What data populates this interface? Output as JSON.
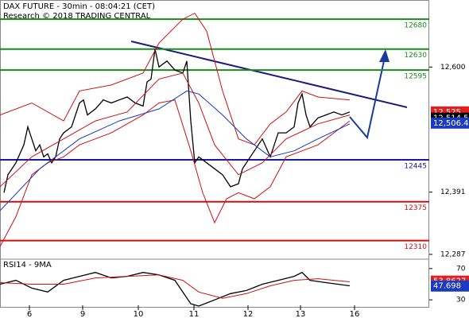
{
  "chart_data": {
    "type": "line",
    "title": "DAX FUTURE - 30min - 08:04:21 (CET)",
    "subtitle": "Research © 2018 TRADING CENTRAL",
    "xlim": [
      0,
      540
    ],
    "xticks": [
      {
        "value": 37,
        "label": "6"
      },
      {
        "value": 104,
        "label": "9"
      },
      {
        "value": 174,
        "label": "10"
      },
      {
        "value": 244,
        "label": "11"
      },
      {
        "value": 312,
        "label": "12"
      },
      {
        "value": 378,
        "label": "13"
      },
      {
        "value": 446,
        "label": "16"
      }
    ],
    "ylim": [
      12279,
      12712
    ],
    "yticks": [
      {
        "value": 12600,
        "label": "12,600"
      },
      {
        "value": 12391,
        "label": "12,391"
      },
      {
        "value": 12287,
        "label": "12,287"
      }
    ],
    "levels": [
      {
        "value": 12680,
        "color": "#1a8a1a"
      },
      {
        "value": 12630,
        "color": "#1a8a1a"
      },
      {
        "value": 12595,
        "color": "#1a8a1a"
      },
      {
        "value": 12445,
        "color": "#1a1aa0"
      },
      {
        "value": 12375,
        "color": "#d01010"
      },
      {
        "value": 12310,
        "color": "#d01010"
      }
    ],
    "last_labels": [
      {
        "value": 12525,
        "label": "12,525",
        "color": "#e02020"
      },
      {
        "value": 12514.5,
        "label": "12,514.5",
        "color": "#000000"
      },
      {
        "value": 12506.4,
        "label": "12,506.4",
        "color": "#1a3ac0"
      }
    ],
    "series": [
      {
        "color": "#000000",
        "x": [
          5,
          10,
          20,
          30,
          35,
          40,
          45,
          50,
          55,
          60,
          65,
          70,
          75,
          80,
          90,
          100,
          105,
          110,
          120,
          130,
          140,
          150,
          160,
          170,
          180,
          185,
          190,
          195,
          200,
          210,
          220,
          230,
          235,
          240,
          245,
          250,
          260,
          270,
          280,
          290,
          300,
          305,
          310,
          320,
          330,
          340,
          345,
          350,
          360,
          370,
          375,
          380,
          385,
          390,
          400,
          410,
          420,
          430,
          440
        ],
        "values": [
          12390,
          12420,
          12440,
          12470,
          12500,
          12480,
          12460,
          12470,
          12450,
          12455,
          12440,
          12450,
          12480,
          12490,
          12500,
          12540,
          12545,
          12520,
          12530,
          12545,
          12540,
          12545,
          12550,
          12540,
          12535,
          12575,
          12580,
          12630,
          12600,
          12610,
          12595,
          12590,
          12610,
          12510,
          12440,
          12450,
          12440,
          12430,
          12420,
          12400,
          12405,
          12430,
          12440,
          12460,
          12480,
          12450,
          12470,
          12490,
          12490,
          12500,
          12540,
          12555,
          12520,
          12500,
          12515,
          12520,
          12525,
          12520,
          12525
        ]
      },
      {
        "color": "#d01010",
        "x": [
          0,
          40,
          80,
          100,
          140,
          180,
          200,
          230,
          245,
          260,
          280,
          300,
          320,
          340,
          360,
          380,
          400,
          440
        ],
        "values": [
          12520,
          12540,
          12510,
          12560,
          12570,
          12590,
          12640,
          12680,
          12690,
          12660,
          12560,
          12480,
          12470,
          12505,
          12525,
          12560,
          12550,
          12545
        ]
      },
      {
        "color": "#d01010",
        "x": [
          0,
          20,
          40,
          60,
          80,
          100,
          140,
          180,
          200,
          220,
          240,
          255,
          270,
          285,
          300,
          320,
          340,
          360,
          400,
          440
        ],
        "values": [
          12300,
          12350,
          12420,
          12440,
          12450,
          12470,
          12490,
          12520,
          12540,
          12545,
          12460,
          12390,
          12340,
          12380,
          12390,
          12380,
          12400,
          12450,
          12470,
          12510
        ]
      },
      {
        "color": "#d01010",
        "x": [
          0,
          40,
          80,
          120,
          160,
          200,
          230,
          250,
          270,
          300,
          330,
          360,
          400,
          440
        ],
        "values": [
          12400,
          12450,
          12480,
          12510,
          12525,
          12580,
          12590,
          12540,
          12470,
          12420,
          12440,
          12480,
          12505,
          12520
        ]
      },
      {
        "color": "#1a3ac0",
        "x": [
          0,
          50,
          100,
          150,
          200,
          235,
          250,
          280,
          310,
          340,
          370,
          400,
          440
        ],
        "values": [
          12360,
          12430,
          12480,
          12510,
          12530,
          12560,
          12555,
          12520,
          12480,
          12450,
          12460,
          12480,
          12505
        ]
      }
    ],
    "rsi": {
      "label": "RSI14 - 9MA",
      "ylim": [
        20,
        82
      ],
      "yticks": [
        70,
        30
      ],
      "last_labels": [
        {
          "value": 53.8627,
          "label": "53.8627",
          "color": "#e02020"
        },
        {
          "value": 47.698,
          "label": "47.698",
          "color": "#1a3ac0"
        }
      ],
      "series": [
        {
          "color": "#000000",
          "x": [
            0,
            20,
            40,
            60,
            80,
            100,
            120,
            140,
            160,
            180,
            200,
            220,
            240,
            250,
            270,
            290,
            310,
            330,
            350,
            370,
            380,
            390,
            410,
            440
          ],
          "values": [
            50,
            55,
            45,
            40,
            55,
            60,
            65,
            58,
            60,
            65,
            62,
            55,
            25,
            22,
            30,
            38,
            42,
            50,
            55,
            60,
            65,
            55,
            52,
            48
          ]
        },
        {
          "color": "#d01010",
          "x": [
            0,
            40,
            80,
            120,
            160,
            200,
            230,
            250,
            280,
            310,
            340,
            370,
            400,
            440
          ],
          "values": [
            52,
            50,
            50,
            58,
            60,
            62,
            55,
            40,
            32,
            38,
            48,
            55,
            57,
            53
          ]
        }
      ]
    }
  }
}
